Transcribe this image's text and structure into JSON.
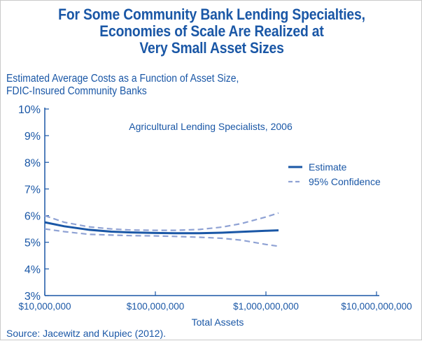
{
  "title_lines": [
    "For Some Community Bank Lending Specialties,",
    "Economies of Scale Are Realized at",
    "Very Small Asset Sizes"
  ],
  "subtitle_lines": [
    "Estimated Average Costs as a Function of Asset Size,",
    "FDIC-Insured Community Banks"
  ],
  "source": "Source: Jacewitz and Kupiec  (2012).",
  "colors": {
    "title": "#1a57a6",
    "estimate": "#1a57a6",
    "confidence": "#8fa2d4",
    "axis": "#1a57a6"
  },
  "chart_data": {
    "type": "line",
    "inner_title": "Agricultural Lending Specialists, 2006",
    "xlabel": "Total Assets",
    "ylabel": "",
    "x_scale": "log",
    "xlim": [
      10000000,
      10000000000
    ],
    "ylim": [
      3,
      10
    ],
    "x_ticks": [
      {
        "value": 10000000,
        "label": "$10,000,000"
      },
      {
        "value": 100000000,
        "label": "$100,000,000"
      },
      {
        "value": 1000000000,
        "label": "$1,000,000,000"
      },
      {
        "value": 10000000000,
        "label": "$10,000,000,000"
      }
    ],
    "y_ticks": [
      {
        "value": 3,
        "label": "3%"
      },
      {
        "value": 4,
        "label": "4%"
      },
      {
        "value": 5,
        "label": "5%"
      },
      {
        "value": 6,
        "label": "6%"
      },
      {
        "value": 7,
        "label": "7%"
      },
      {
        "value": 8,
        "label": "8%"
      },
      {
        "value": 9,
        "label": "9%"
      },
      {
        "value": 10,
        "label": "10%"
      }
    ],
    "grid": false,
    "legend_position": "top-right",
    "series": [
      {
        "name": "Estimate",
        "style": "solid",
        "x": [
          10000000,
          15000000,
          25000000,
          40000000,
          60000000,
          100000000,
          150000000,
          250000000,
          400000000,
          600000000,
          1000000000,
          1300000000
        ],
        "y": [
          5.75,
          5.6,
          5.47,
          5.4,
          5.37,
          5.35,
          5.34,
          5.34,
          5.36,
          5.39,
          5.43,
          5.45
        ]
      },
      {
        "name": "95% Confidence",
        "style": "dashed",
        "x": [
          10000000,
          15000000,
          25000000,
          40000000,
          60000000,
          100000000,
          150000000,
          250000000,
          400000000,
          600000000,
          1000000000,
          1300000000
        ],
        "y": [
          6.0,
          5.75,
          5.58,
          5.5,
          5.46,
          5.45,
          5.45,
          5.48,
          5.57,
          5.7,
          5.95,
          6.1
        ]
      },
      {
        "name": "95% Confidence (lower)",
        "style": "dashed",
        "x": [
          10000000,
          15000000,
          25000000,
          40000000,
          60000000,
          100000000,
          150000000,
          250000000,
          400000000,
          600000000,
          1000000000,
          1300000000
        ],
        "y": [
          5.5,
          5.4,
          5.3,
          5.27,
          5.25,
          5.24,
          5.22,
          5.19,
          5.15,
          5.08,
          4.92,
          4.85
        ]
      }
    ]
  }
}
